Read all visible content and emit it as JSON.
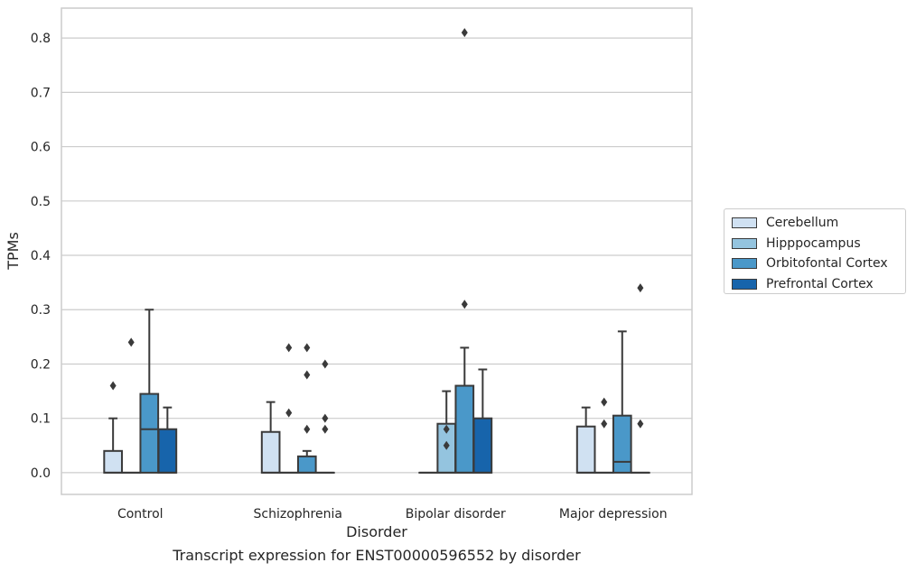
{
  "chart_data": {
    "type": "box",
    "xlabel": "Disorder",
    "ylabel": "TPMs",
    "caption": "Transcript expression for ENST00000596552 by disorder",
    "ylim": [
      -0.04,
      0.855
    ],
    "yticks": [
      "0.0",
      "0.1",
      "0.2",
      "0.3",
      "0.4",
      "0.5",
      "0.6",
      "0.7",
      "0.8"
    ],
    "grid": true,
    "legend_position": "right",
    "categories": [
      "Control",
      "Schizophrenia",
      "Bipolar disorder",
      "Major depression"
    ],
    "series": [
      {
        "name": "Cerebellum",
        "color": "#d0e1f2",
        "boxes": [
          {
            "q1": 0,
            "median": 0,
            "q3": 0.04,
            "whisker_low": 0,
            "whisker_high": 0.1,
            "outliers": [
              0.16
            ]
          },
          {
            "q1": 0,
            "median": 0,
            "q3": 0.075,
            "whisker_low": 0,
            "whisker_high": 0.13,
            "outliers": []
          },
          {
            "q1": 0,
            "median": 0,
            "q3": 0,
            "whisker_low": 0,
            "whisker_high": 0,
            "outliers": []
          },
          {
            "q1": 0,
            "median": 0,
            "q3": 0.085,
            "whisker_low": 0,
            "whisker_high": 0.12,
            "outliers": []
          }
        ]
      },
      {
        "name": "Hipppocampus",
        "color": "#94c4df",
        "boxes": [
          {
            "q1": 0,
            "median": 0,
            "q3": 0,
            "whisker_low": 0,
            "whisker_high": 0,
            "outliers": [
              0.24
            ]
          },
          {
            "q1": 0,
            "median": 0,
            "q3": 0,
            "whisker_low": 0,
            "whisker_high": 0,
            "outliers": [
              0.11,
              0.23
            ]
          },
          {
            "q1": 0,
            "median": 0,
            "q3": 0.09,
            "whisker_low": 0,
            "whisker_high": 0.15,
            "outliers": [
              0.05,
              0.08
            ]
          },
          {
            "q1": 0,
            "median": 0,
            "q3": 0,
            "whisker_low": 0,
            "whisker_high": 0,
            "outliers": [
              0.09,
              0.13
            ]
          }
        ]
      },
      {
        "name": "Orbitofontal Cortex",
        "color": "#4a98c9",
        "boxes": [
          {
            "q1": 0,
            "median": 0.08,
            "q3": 0.145,
            "whisker_low": 0,
            "whisker_high": 0.3,
            "outliers": []
          },
          {
            "q1": 0,
            "median": 0,
            "q3": 0.03,
            "whisker_low": 0,
            "whisker_high": 0.04,
            "outliers": [
              0.08,
              0.18,
              0.23
            ]
          },
          {
            "q1": 0,
            "median": 0,
            "q3": 0.16,
            "whisker_low": 0,
            "whisker_high": 0.23,
            "outliers": [
              0.31,
              0.81
            ]
          },
          {
            "q1": 0,
            "median": 0.02,
            "q3": 0.105,
            "whisker_low": 0,
            "whisker_high": 0.26,
            "outliers": []
          }
        ]
      },
      {
        "name": "Prefrontal Cortex",
        "color": "#1764ab",
        "boxes": [
          {
            "q1": 0,
            "median": 0,
            "q3": 0.08,
            "whisker_low": 0,
            "whisker_high": 0.12,
            "outliers": []
          },
          {
            "q1": 0,
            "median": 0,
            "q3": 0,
            "whisker_low": 0,
            "whisker_high": 0,
            "outliers": [
              0.08,
              0.1,
              0.2
            ]
          },
          {
            "q1": 0,
            "median": 0,
            "q3": 0.1,
            "whisker_low": 0,
            "whisker_high": 0.19,
            "outliers": []
          },
          {
            "q1": 0,
            "median": 0,
            "q3": 0,
            "whisker_low": 0,
            "whisker_high": 0,
            "outliers": [
              0.09,
              0.34
            ]
          }
        ]
      }
    ]
  }
}
